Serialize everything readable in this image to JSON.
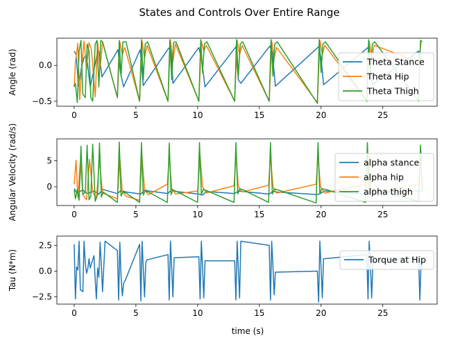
{
  "figure": {
    "title": "States and Controls Over Entire Range",
    "xlabel": "time (s)"
  },
  "colors": {
    "blue": "#1f77b4",
    "orange": "#ff7f0e",
    "green": "#2ca02c"
  },
  "chart_data": [
    {
      "type": "line",
      "ylabel": "Angle (rad)",
      "xlim": [
        -1.4,
        29.4
      ],
      "ylim": [
        -0.57,
        0.38
      ],
      "xticks": [
        0,
        5,
        10,
        15,
        20,
        25
      ],
      "xticklabels": [
        "0",
        "5",
        "10",
        "15",
        "20",
        "25"
      ],
      "yticks": [
        0.0,
        -0.5
      ],
      "yticklabels": [
        "0.0",
        "−0.5"
      ],
      "legend": "right",
      "series": [
        {
          "name": "Theta Stance",
          "color": "#1f77b4",
          "x": [
            0,
            0.15,
            0.35,
            0.6,
            0.8,
            1.0,
            1.3,
            1.7,
            1.9,
            2.0,
            2.25,
            3.55,
            3.75,
            4.0,
            5.35,
            5.6,
            7.65,
            7.85,
            8.0,
            10.1,
            10.3,
            10.6,
            13.1,
            13.3,
            13.5,
            15.85,
            16.05,
            16.3,
            19.8,
            20.0,
            20.2,
            23.8,
            23.95,
            24.15,
            27.9,
            28.0,
            28.1
          ],
          "y": [
            0.2,
            0.16,
            -0.29,
            -0.02,
            0.11,
            0.14,
            -0.3,
            0.02,
            0.2,
            0.2,
            -0.16,
            0.22,
            -0.1,
            -0.3,
            0.22,
            -0.28,
            0.24,
            0.24,
            -0.25,
            0.25,
            0.1,
            -0.3,
            0.26,
            -0.2,
            -0.25,
            0.27,
            0.18,
            -0.29,
            0.26,
            0.1,
            -0.27,
            0.25,
            0.05,
            -0.27,
            0.2,
            0.05,
            0.05
          ]
        },
        {
          "name": "Theta Hip",
          "color": "#ff7f0e",
          "x": [
            0,
            0.1,
            0.3,
            0.45,
            0.6,
            0.8,
            1.0,
            1.2,
            1.4,
            1.7,
            1.9,
            2.1,
            2.3,
            3.5,
            3.7,
            3.9,
            4.1,
            5.3,
            5.5,
            5.7,
            5.9,
            7.6,
            7.8,
            8.0,
            8.2,
            10.1,
            10.3,
            10.5,
            10.7,
            13.0,
            13.2,
            13.4,
            13.6,
            15.8,
            16.0,
            16.2,
            16.4,
            19.7,
            19.9,
            20.1,
            20.3,
            23.7,
            23.9,
            24.1,
            24.3,
            27.9,
            28.1
          ],
          "y": [
            -0.3,
            0.05,
            0.31,
            -0.48,
            -0.05,
            0.34,
            -0.05,
            0.32,
            0.22,
            -0.44,
            0.33,
            -0.05,
            0.33,
            -0.45,
            0.33,
            0.15,
            0.25,
            -0.5,
            0.34,
            0.1,
            0.28,
            -0.5,
            0.35,
            0.05,
            0.3,
            -0.5,
            0.34,
            0.2,
            0.28,
            -0.5,
            0.35,
            0.15,
            0.28,
            -0.5,
            0.34,
            0.1,
            0.25,
            -0.52,
            0.35,
            0.15,
            0.28,
            -0.5,
            0.34,
            0.1,
            0.28,
            0.05,
            0.33
          ]
        },
        {
          "name": "Theta Thigh",
          "color": "#2ca02c",
          "x": [
            0,
            0.1,
            0.25,
            0.4,
            0.55,
            0.7,
            0.9,
            1.05,
            1.2,
            1.35,
            1.5,
            1.7,
            1.85,
            2.0,
            2.15,
            2.3,
            3.5,
            3.65,
            3.8,
            3.95,
            4.2,
            5.3,
            5.45,
            5.6,
            5.75,
            5.95,
            7.6,
            7.75,
            7.9,
            8.05,
            8.25,
            10.1,
            10.25,
            10.4,
            10.55,
            10.75,
            13.0,
            13.15,
            13.3,
            13.45,
            13.65,
            15.8,
            15.95,
            16.1,
            16.25,
            16.45,
            19.7,
            19.85,
            20.0,
            20.15,
            20.35,
            23.7,
            23.85,
            24.0,
            24.15,
            24.35,
            27.9,
            28.05,
            28.2
          ],
          "y": [
            -0.3,
            -0.25,
            -0.52,
            0.2,
            0.35,
            -0.4,
            -0.45,
            0.3,
            0.2,
            -0.45,
            -0.5,
            0.3,
            0.35,
            -0.3,
            0.35,
            0.33,
            -0.45,
            0.35,
            -0.15,
            0.33,
            0.33,
            -0.5,
            0.36,
            -0.2,
            0.3,
            0.33,
            -0.5,
            0.36,
            -0.2,
            0.32,
            0.33,
            -0.5,
            0.36,
            -0.1,
            0.3,
            0.33,
            -0.5,
            0.36,
            -0.15,
            0.3,
            0.33,
            -0.5,
            0.36,
            -0.15,
            0.3,
            0.33,
            -0.53,
            0.36,
            -0.1,
            0.3,
            0.33,
            -0.5,
            0.36,
            -0.1,
            0.3,
            0.33,
            -0.5,
            0.35,
            0.33
          ]
        }
      ]
    },
    {
      "type": "line",
      "ylabel": "Angular Velocity (rad/s)",
      "xlim": [
        -1.4,
        29.4
      ],
      "ylim": [
        -3.6,
        9.2
      ],
      "xticks": [
        0,
        5,
        10,
        15,
        20,
        25
      ],
      "xticklabels": [
        "0",
        "5",
        "10",
        "15",
        "20",
        "25"
      ],
      "yticks": [
        0,
        5
      ],
      "yticklabels": [
        "0",
        "5"
      ],
      "legend": "right",
      "series": [
        {
          "name": "alpha stance",
          "color": "#1f77b4",
          "x": [
            0,
            0.2,
            0.4,
            0.7,
            1.0,
            1.3,
            1.6,
            2.0,
            2.3,
            3.5,
            3.8,
            4.2,
            5.4,
            5.7,
            6.0,
            7.6,
            7.9,
            8.2,
            10.1,
            10.4,
            10.7,
            13.0,
            13.3,
            13.6,
            15.8,
            16.1,
            16.4,
            19.7,
            20.0,
            20.3,
            23.7,
            24.0,
            24.3,
            27.9,
            28.1
          ],
          "y": [
            -0.3,
            -1.2,
            -1.0,
            -0.6,
            -1.3,
            -1.1,
            -0.8,
            -1.4,
            -0.5,
            -1.3,
            -0.7,
            -1.0,
            -1.4,
            -0.6,
            -0.8,
            -1.3,
            -0.5,
            -0.9,
            -1.4,
            -1.6,
            -0.9,
            -1.3,
            -0.8,
            -0.9,
            -1.4,
            -0.9,
            -1.0,
            -1.5,
            -1.2,
            -0.8,
            -1.4,
            -1.2,
            -1.0,
            -0.8,
            -0.9
          ]
        },
        {
          "name": "alpha hip",
          "color": "#ff7f0e",
          "x": [
            0,
            0.15,
            0.3,
            0.5,
            0.7,
            1.0,
            1.25,
            1.5,
            1.8,
            2.05,
            2.3,
            3.5,
            3.7,
            3.9,
            4.2,
            5.3,
            5.5,
            5.7,
            6.0,
            7.55,
            7.7,
            7.9,
            8.2,
            10.0,
            10.2,
            10.4,
            10.7,
            12.95,
            13.1,
            13.3,
            13.6,
            15.75,
            15.9,
            16.1,
            16.4,
            19.6,
            19.75,
            19.95,
            20.3,
            23.6,
            23.8,
            24.0,
            24.3,
            27.9,
            28.1
          ],
          "y": [
            0.5,
            5.1,
            -2.0,
            4.8,
            -1.5,
            -2.5,
            5.3,
            -1.0,
            -2.3,
            5.0,
            -1.2,
            -2.3,
            5.6,
            -1.0,
            -1.8,
            -2.6,
            5.7,
            -0.5,
            -1.5,
            0.5,
            5.8,
            -0.3,
            -1.4,
            -0.8,
            5.9,
            0.0,
            -1.2,
            0.2,
            6.0,
            0.1,
            -1.0,
            0.3,
            6.0,
            0.0,
            -1.2,
            0.5,
            6.0,
            0.0,
            -1.2,
            0.5,
            6.2,
            -0.3,
            -1.1,
            0.5,
            6.8
          ]
        },
        {
          "name": "alpha thigh",
          "color": "#2ca02c",
          "x": [
            0,
            0.1,
            0.25,
            0.4,
            0.55,
            0.7,
            0.9,
            1.05,
            1.2,
            1.35,
            1.5,
            1.7,
            1.9,
            2.05,
            2.2,
            2.35,
            3.5,
            3.65,
            3.8,
            3.95,
            4.2,
            5.3,
            5.45,
            5.6,
            5.75,
            6.0,
            7.55,
            7.7,
            7.85,
            8.0,
            8.3,
            10.0,
            10.15,
            10.3,
            10.45,
            10.7,
            12.95,
            13.1,
            13.25,
            13.4,
            13.7,
            15.75,
            15.9,
            16.05,
            16.2,
            16.5,
            19.6,
            19.75,
            19.9,
            20.05,
            20.4,
            23.6,
            23.75,
            23.9,
            24.05,
            24.4,
            27.9,
            28.05,
            28.2
          ],
          "y": [
            -0.6,
            -2.3,
            -0.5,
            -2.6,
            7.8,
            -1.5,
            -1.0,
            8.0,
            -2.5,
            -1.8,
            8.2,
            -2.8,
            -1.5,
            8.4,
            -2.0,
            -1.0,
            -3.0,
            8.6,
            -1.8,
            -1.0,
            -1.2,
            -3.0,
            8.5,
            -1.6,
            -0.8,
            -1.0,
            -3.0,
            8.4,
            -1.5,
            -0.6,
            -0.9,
            -3.0,
            8.5,
            -1.5,
            -0.5,
            -0.7,
            -3.0,
            8.5,
            -1.4,
            -0.4,
            -0.6,
            -3.0,
            8.5,
            -1.4,
            -0.4,
            -0.6,
            -3.1,
            8.5,
            -1.4,
            -0.4,
            -0.5,
            -3.0,
            8.5,
            -1.4,
            -0.3,
            -0.5,
            -2.8,
            8.0,
            -1.0
          ]
        }
      ]
    },
    {
      "type": "line",
      "ylabel": "Tau (N*m)",
      "xlim": [
        -1.4,
        29.4
      ],
      "ylim": [
        -3.2,
        3.4
      ],
      "xticks": [
        0,
        5,
        10,
        15,
        20,
        25
      ],
      "xticklabels": [
        "0",
        "5",
        "10",
        "15",
        "20",
        "25"
      ],
      "yticks": [
        2.5,
        0.0,
        -2.5
      ],
      "yticklabels": [
        "2.5",
        "0.0",
        "−2.5"
      ],
      "legend": "right",
      "series": [
        {
          "name": "Torque at Hip",
          "color": "#1f77b4",
          "x": [
            0,
            0.1,
            0.2,
            0.3,
            0.4,
            0.5,
            0.7,
            0.8,
            0.9,
            1.0,
            1.1,
            1.2,
            1.3,
            1.6,
            1.7,
            1.8,
            1.9,
            2.0,
            2.1,
            2.2,
            2.3,
            2.5,
            3.5,
            3.6,
            3.7,
            3.8,
            3.9,
            4.0,
            4.1,
            5.3,
            5.4,
            5.5,
            5.6,
            5.7,
            5.8,
            5.9,
            7.6,
            7.7,
            7.8,
            7.9,
            8.0,
            8.1,
            10.1,
            10.2,
            10.3,
            10.4,
            10.5,
            10.6,
            13.0,
            13.1,
            13.2,
            13.3,
            13.4,
            13.5,
            15.8,
            15.9,
            16.0,
            16.1,
            16.2,
            16.3,
            19.7,
            19.8,
            19.9,
            20.0,
            20.1,
            20.2,
            23.7,
            23.8,
            23.9,
            24.0,
            24.1,
            24.2,
            27.9,
            28.0,
            28.1,
            28.2
          ],
          "y": [
            2.6,
            -2.7,
            0.4,
            0.1,
            2.9,
            -1.8,
            -2.0,
            2.9,
            0.8,
            -0.2,
            0.2,
            1.2,
            0.3,
            1.5,
            -0.8,
            -2.7,
            0.3,
            -0.6,
            2.8,
            0.5,
            -2.0,
            2.9,
            2.0,
            -2.8,
            2.8,
            -0.5,
            -2.4,
            -1.2,
            -1.0,
            2.6,
            -2.9,
            2.9,
            0.3,
            -2.5,
            0.8,
            1.1,
            1.6,
            -2.8,
            2.9,
            0.3,
            -2.5,
            1.3,
            1.4,
            -2.7,
            2.9,
            0.4,
            -2.6,
            1.0,
            1.0,
            -2.8,
            2.9,
            0.2,
            -2.6,
            2.9,
            2.5,
            -2.8,
            2.9,
            0.5,
            -2.3,
            -0.1,
            0.0,
            -3.0,
            2.9,
            0.3,
            -2.6,
            1.2,
            1.6,
            -2.7,
            2.9,
            0.4,
            -2.6,
            1.0,
            1.3,
            -2.8,
            0.9,
            0.2
          ]
        }
      ]
    }
  ]
}
